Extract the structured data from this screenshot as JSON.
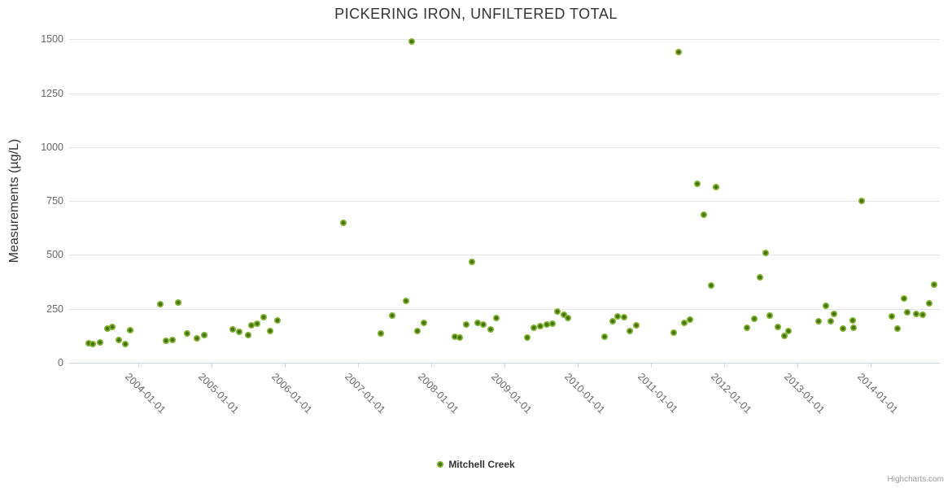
{
  "credits": "Highcharts.com",
  "colors": {
    "marker_outer": "#7db22d",
    "marker_inner": "#48700f",
    "gridline": "#e6e6e6",
    "axis_line": "#ccd6eb",
    "label_color": "#666666",
    "title_color": "#333333"
  },
  "chart_data": {
    "type": "scatter",
    "title": "PICKERING IRON, UNFILTERED TOTAL",
    "xlabel": "",
    "ylabel": "Measurements (µg/L)",
    "ylim": [
      0,
      1500
    ],
    "grid": true,
    "legend_position": "bottom-center",
    "y_ticks": [
      0,
      250,
      500,
      750,
      1000,
      1250,
      1500
    ],
    "x_ticks": [
      {
        "year": 2004,
        "label": "2004-01-01"
      },
      {
        "year": 2005,
        "label": "2005-01-01"
      },
      {
        "year": 2006,
        "label": "2006-01-01"
      },
      {
        "year": 2007,
        "label": "2007-01-01"
      },
      {
        "year": 2008,
        "label": "2008-01-01"
      },
      {
        "year": 2009,
        "label": "2009-01-01"
      },
      {
        "year": 2010,
        "label": "2010-01-01"
      },
      {
        "year": 2011,
        "label": "2011-01-01"
      },
      {
        "year": 2012,
        "label": "2012-01-01"
      },
      {
        "year": 2013,
        "label": "2013-01-01"
      },
      {
        "year": 2014,
        "label": "2014-01-01"
      }
    ],
    "series": [
      {
        "name": "Mitchell Creek",
        "points": [
          [
            2003.32,
            90
          ],
          [
            2003.38,
            85
          ],
          [
            2003.48,
            95
          ],
          [
            2003.58,
            160
          ],
          [
            2003.64,
            165
          ],
          [
            2003.73,
            105
          ],
          [
            2003.82,
            85
          ],
          [
            2003.89,
            150
          ],
          [
            2004.3,
            270
          ],
          [
            2004.38,
            100
          ],
          [
            2004.47,
            105
          ],
          [
            2004.54,
            278
          ],
          [
            2004.67,
            135
          ],
          [
            2004.8,
            113
          ],
          [
            2004.9,
            128
          ],
          [
            2005.29,
            155
          ],
          [
            2005.38,
            143
          ],
          [
            2005.5,
            128
          ],
          [
            2005.54,
            173
          ],
          [
            2005.62,
            181
          ],
          [
            2005.71,
            211
          ],
          [
            2005.8,
            147
          ],
          [
            2005.9,
            196
          ],
          [
            2006.8,
            648
          ],
          [
            2007.31,
            136
          ],
          [
            2007.47,
            220
          ],
          [
            2007.66,
            288
          ],
          [
            2007.73,
            1489
          ],
          [
            2007.81,
            147
          ],
          [
            2007.9,
            185
          ],
          [
            2008.32,
            121
          ],
          [
            2008.39,
            117
          ],
          [
            2008.48,
            177
          ],
          [
            2008.56,
            468
          ],
          [
            2008.63,
            185
          ],
          [
            2008.71,
            177
          ],
          [
            2008.81,
            155
          ],
          [
            2008.89,
            207
          ],
          [
            2009.31,
            117
          ],
          [
            2009.4,
            162
          ],
          [
            2009.49,
            170
          ],
          [
            2009.58,
            177
          ],
          [
            2009.66,
            181
          ],
          [
            2009.72,
            236
          ],
          [
            2009.81,
            222
          ],
          [
            2009.87,
            207
          ],
          [
            2010.37,
            121
          ],
          [
            2010.48,
            192
          ],
          [
            2010.54,
            215
          ],
          [
            2010.63,
            211
          ],
          [
            2010.71,
            147
          ],
          [
            2010.8,
            173
          ],
          [
            2011.31,
            139
          ],
          [
            2011.38,
            1440
          ],
          [
            2011.46,
            185
          ],
          [
            2011.53,
            200
          ],
          [
            2011.63,
            830
          ],
          [
            2011.72,
            688
          ],
          [
            2011.82,
            358
          ],
          [
            2011.89,
            815
          ],
          [
            2012.31,
            162
          ],
          [
            2012.41,
            204
          ],
          [
            2012.49,
            396
          ],
          [
            2012.57,
            508
          ],
          [
            2012.62,
            219
          ],
          [
            2012.73,
            166
          ],
          [
            2012.82,
            124
          ],
          [
            2012.88,
            147
          ],
          [
            2013.29,
            192
          ],
          [
            2013.39,
            264
          ],
          [
            2013.46,
            192
          ],
          [
            2013.5,
            226
          ],
          [
            2013.62,
            158
          ],
          [
            2013.76,
            196
          ],
          [
            2013.77,
            162
          ],
          [
            2013.88,
            750
          ],
          [
            2014.29,
            215
          ],
          [
            2014.37,
            158
          ],
          [
            2014.46,
            298
          ],
          [
            2014.5,
            234
          ],
          [
            2014.62,
            226
          ],
          [
            2014.71,
            222
          ],
          [
            2014.8,
            275
          ],
          [
            2014.87,
            362
          ]
        ]
      }
    ]
  }
}
